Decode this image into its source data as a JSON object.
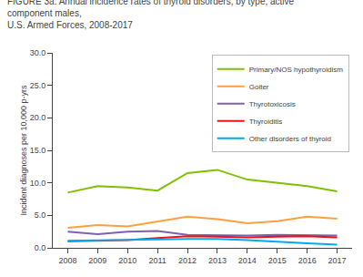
{
  "chart_data": {
    "type": "line",
    "title": "FIGURE 3a. Annual incidence rates of thyroid disorders, by type, active component males,\nU.S. Armed Forces, 2008-2017",
    "ylabel": "Incident diagnoses per 10,000 p-yrs",
    "x": [
      2008,
      2009,
      2010,
      2011,
      2012,
      2013,
      2014,
      2015,
      2016,
      2017
    ],
    "xlim": [
      2007.5,
      2017.5
    ],
    "xticks": [
      2008,
      2009,
      2010,
      2011,
      2012,
      2013,
      2014,
      2015,
      2016,
      2017
    ],
    "ylim": [
      0,
      30.0
    ],
    "yticks": [
      {
        "value": 0.0,
        "label": "0.0"
      },
      {
        "value": 5.0,
        "label": "5.0"
      },
      {
        "value": 10.0,
        "label": "10.0"
      },
      {
        "value": 15.0,
        "label": "15.0"
      },
      {
        "value": 20.0,
        "label": "20.0"
      },
      {
        "value": 25.0,
        "label": "25.0"
      },
      {
        "value": 30.0,
        "label": "30.0"
      }
    ],
    "grid": false,
    "legend": "upper right",
    "series": [
      {
        "name": "Primary/NOS hypothyroidism",
        "color": "#80c000",
        "values": [
          8.5,
          9.5,
          9.3,
          8.8,
          11.5,
          12.0,
          10.5,
          10.0,
          9.5,
          8.7
        ]
      },
      {
        "name": "Goiter",
        "color": "#ffa040",
        "values": [
          3.1,
          3.5,
          3.3,
          4.0,
          4.8,
          4.4,
          3.8,
          4.1,
          4.8,
          4.5
        ]
      },
      {
        "name": "Thyrotoxicosis",
        "color": "#8060b0",
        "values": [
          2.5,
          2.1,
          2.5,
          2.6,
          2.0,
          1.9,
          1.9,
          2.0,
          2.0,
          1.9
        ]
      },
      {
        "name": "Thyroiditis",
        "color": "#ee1111",
        "values": [
          1.0,
          1.1,
          1.2,
          1.5,
          1.8,
          1.7,
          1.6,
          1.7,
          1.8,
          1.6
        ]
      },
      {
        "name": "Other disorders of thyroid",
        "color": "#00aaee",
        "values": [
          1.1,
          1.2,
          1.3,
          1.3,
          1.35,
          1.35,
          1.2,
          0.9,
          0.7,
          0.5
        ]
      }
    ]
  }
}
